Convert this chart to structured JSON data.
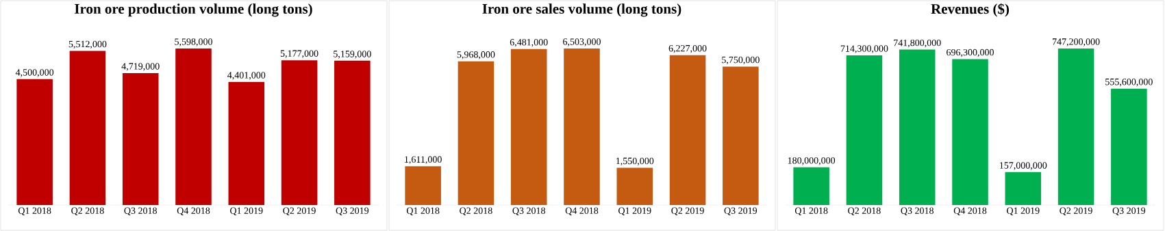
{
  "chart_data": [
    {
      "type": "bar",
      "title": "Iron ore production volume (long tons)",
      "categories": [
        "Q1 2018",
        "Q2 2018",
        "Q3 2018",
        "Q4 2018",
        "Q1 2019",
        "Q2 2019",
        "Q3 2019"
      ],
      "values": [
        4500000,
        5512000,
        4719000,
        5598000,
        4401000,
        5177000,
        5159000
      ],
      "value_labels": [
        "4,500,000",
        "5,512,000",
        "4,719,000",
        "5,598,000",
        "4,401,000",
        "5,177,000",
        "5,159,000"
      ],
      "color": "#c00000"
    },
    {
      "type": "bar",
      "title": "Iron ore sales volume (long tons)",
      "categories": [
        "Q1 2018",
        "Q2 2018",
        "Q3 2018",
        "Q4 2018",
        "Q1 2019",
        "Q2 2019",
        "Q3 2019"
      ],
      "values": [
        1611000,
        5968000,
        6481000,
        6503000,
        1550000,
        6227000,
        5750000
      ],
      "value_labels": [
        "1,611,000",
        "5,968,000",
        "6,481,000",
        "6,503,000",
        "1,550,000",
        "6,227,000",
        "5,750,000"
      ],
      "color": "#c55a11"
    },
    {
      "type": "bar",
      "title": "Revenues ($)",
      "categories": [
        "Q1 2018",
        "Q2 2018",
        "Q3 2018",
        "Q4 2018",
        "Q1 2019",
        "Q2 2019",
        "Q3 2019"
      ],
      "values": [
        180000000,
        714300000,
        741800000,
        696300000,
        157000000,
        747200000,
        555600000
      ],
      "value_labels": [
        "180,000,000",
        "714,300,000",
        "741,800,000",
        "696,300,000",
        "157,000,000",
        "747,200,000",
        "555,600,000"
      ],
      "color": "#00b050"
    }
  ]
}
